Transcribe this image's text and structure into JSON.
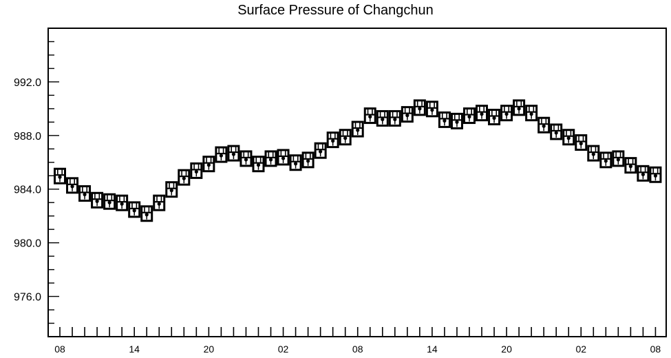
{
  "chart_data": {
    "type": "scatter",
    "title": "Surface Pressure of Changchun",
    "xlabel": "",
    "ylabel": "",
    "ylim": [
      973,
      996
    ],
    "yticks": [
      976.0,
      980.0,
      984.0,
      988.0,
      992.0
    ],
    "ytick_labels": [
      "976.0",
      "980.0",
      "984.0",
      "988.0",
      "992.0"
    ],
    "xtick_labels": [
      "08",
      "14",
      "20",
      "02",
      "08",
      "14",
      "20",
      "02",
      "08"
    ],
    "xtick_index": [
      0,
      6,
      12,
      18,
      24,
      30,
      36,
      42,
      48
    ],
    "grid": false,
    "x": [
      0,
      1,
      2,
      3,
      4,
      5,
      6,
      7,
      8,
      9,
      10,
      11,
      12,
      13,
      14,
      15,
      16,
      17,
      18,
      19,
      20,
      21,
      22,
      23,
      24,
      25,
      26,
      27,
      28,
      29,
      30,
      31,
      32,
      33,
      34,
      35,
      36,
      37,
      38,
      39,
      40,
      41,
      42,
      43,
      44,
      45,
      46,
      47,
      48
    ],
    "values": [
      984.9,
      984.2,
      983.6,
      983.1,
      983.0,
      982.9,
      982.4,
      982.1,
      982.9,
      983.9,
      984.8,
      985.3,
      985.8,
      986.5,
      986.6,
      986.2,
      985.8,
      986.2,
      986.3,
      985.9,
      986.1,
      986.8,
      987.6,
      987.8,
      988.4,
      989.4,
      989.2,
      989.2,
      989.5,
      990.0,
      989.9,
      989.1,
      989.0,
      989.4,
      989.6,
      989.3,
      989.6,
      990.0,
      989.6,
      988.7,
      988.2,
      987.8,
      987.4,
      986.6,
      986.1,
      986.2,
      985.7,
      985.1,
      985.0
    ]
  }
}
